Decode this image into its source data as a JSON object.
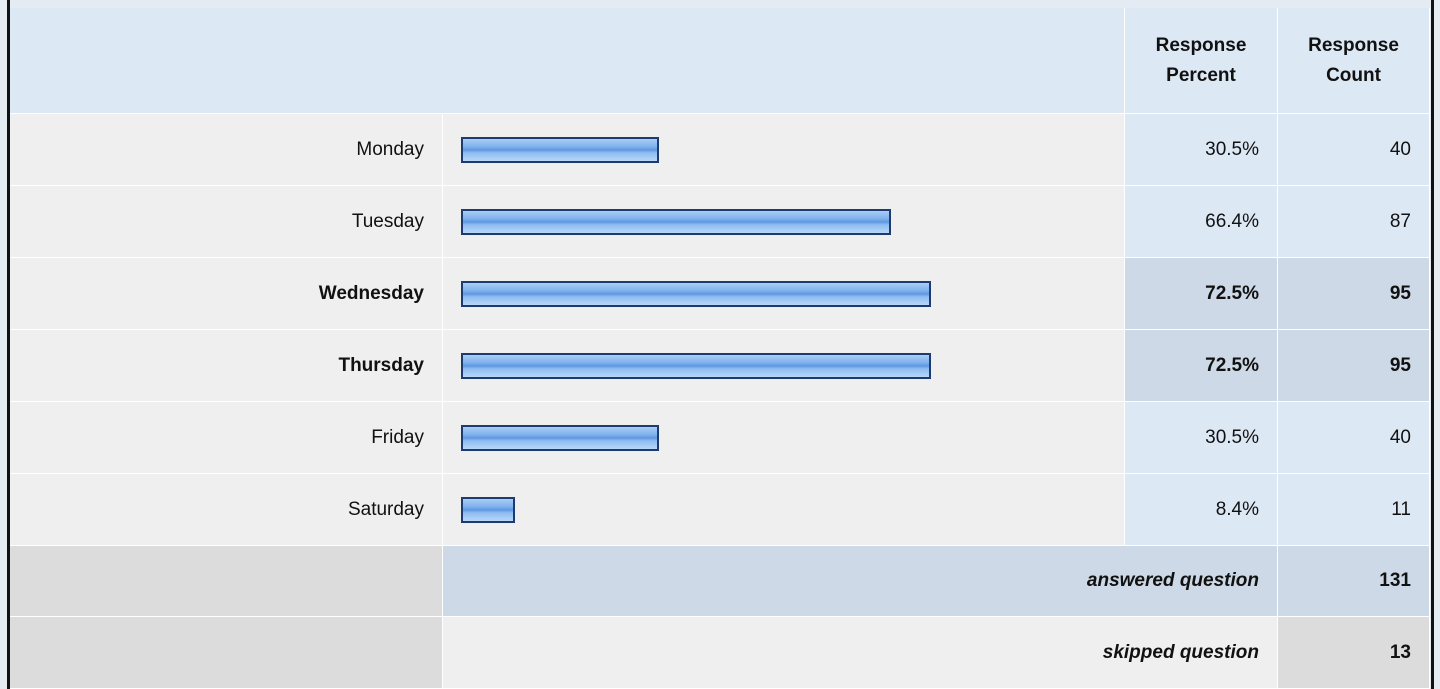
{
  "header": {
    "percent": "Response Percent",
    "count": "Response Count"
  },
  "xlim": [
    0,
    100
  ],
  "rows": [
    {
      "label": "Monday",
      "percent": 30.5,
      "percent_label": "30.5%",
      "count": 40,
      "highlight": false
    },
    {
      "label": "Tuesday",
      "percent": 66.4,
      "percent_label": "66.4%",
      "count": 87,
      "highlight": false
    },
    {
      "label": "Wednesday",
      "percent": 72.5,
      "percent_label": "72.5%",
      "count": 95,
      "highlight": true
    },
    {
      "label": "Thursday",
      "percent": 72.5,
      "percent_label": "72.5%",
      "count": 95,
      "highlight": true
    },
    {
      "label": "Friday",
      "percent": 30.5,
      "percent_label": "30.5%",
      "count": 40,
      "highlight": false
    },
    {
      "label": "Saturday",
      "percent": 8.4,
      "percent_label": "8.4%",
      "count": 11,
      "highlight": false
    }
  ],
  "answered": {
    "label": "answered question",
    "count": 131
  },
  "skipped": {
    "label": "skipped question",
    "count": 13
  }
}
